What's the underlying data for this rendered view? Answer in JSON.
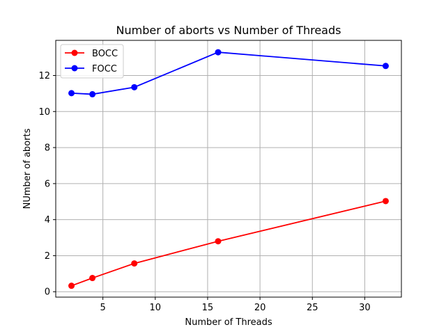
{
  "chart_data": {
    "type": "line",
    "title": "Number of aborts vs Number of Threads",
    "xlabel": "Number of Threads",
    "ylabel": "NUmber of aborts",
    "x": [
      2,
      4,
      8,
      16,
      32
    ],
    "xlim": [
      0.5,
      33.5
    ],
    "ylim": [
      -0.3,
      13.95
    ],
    "xticks": [
      5,
      10,
      15,
      20,
      25,
      30
    ],
    "yticks": [
      0,
      2,
      4,
      6,
      8,
      10,
      12
    ],
    "grid": true,
    "legend_position": "upper-left",
    "series": [
      {
        "name": "BOCC",
        "color": "#ff0000",
        "values": [
          0.33,
          0.76,
          1.57,
          2.8,
          5.03
        ]
      },
      {
        "name": "FOCC",
        "color": "#0000ff",
        "values": [
          11.02,
          10.96,
          11.35,
          13.29,
          12.53
        ]
      }
    ]
  }
}
